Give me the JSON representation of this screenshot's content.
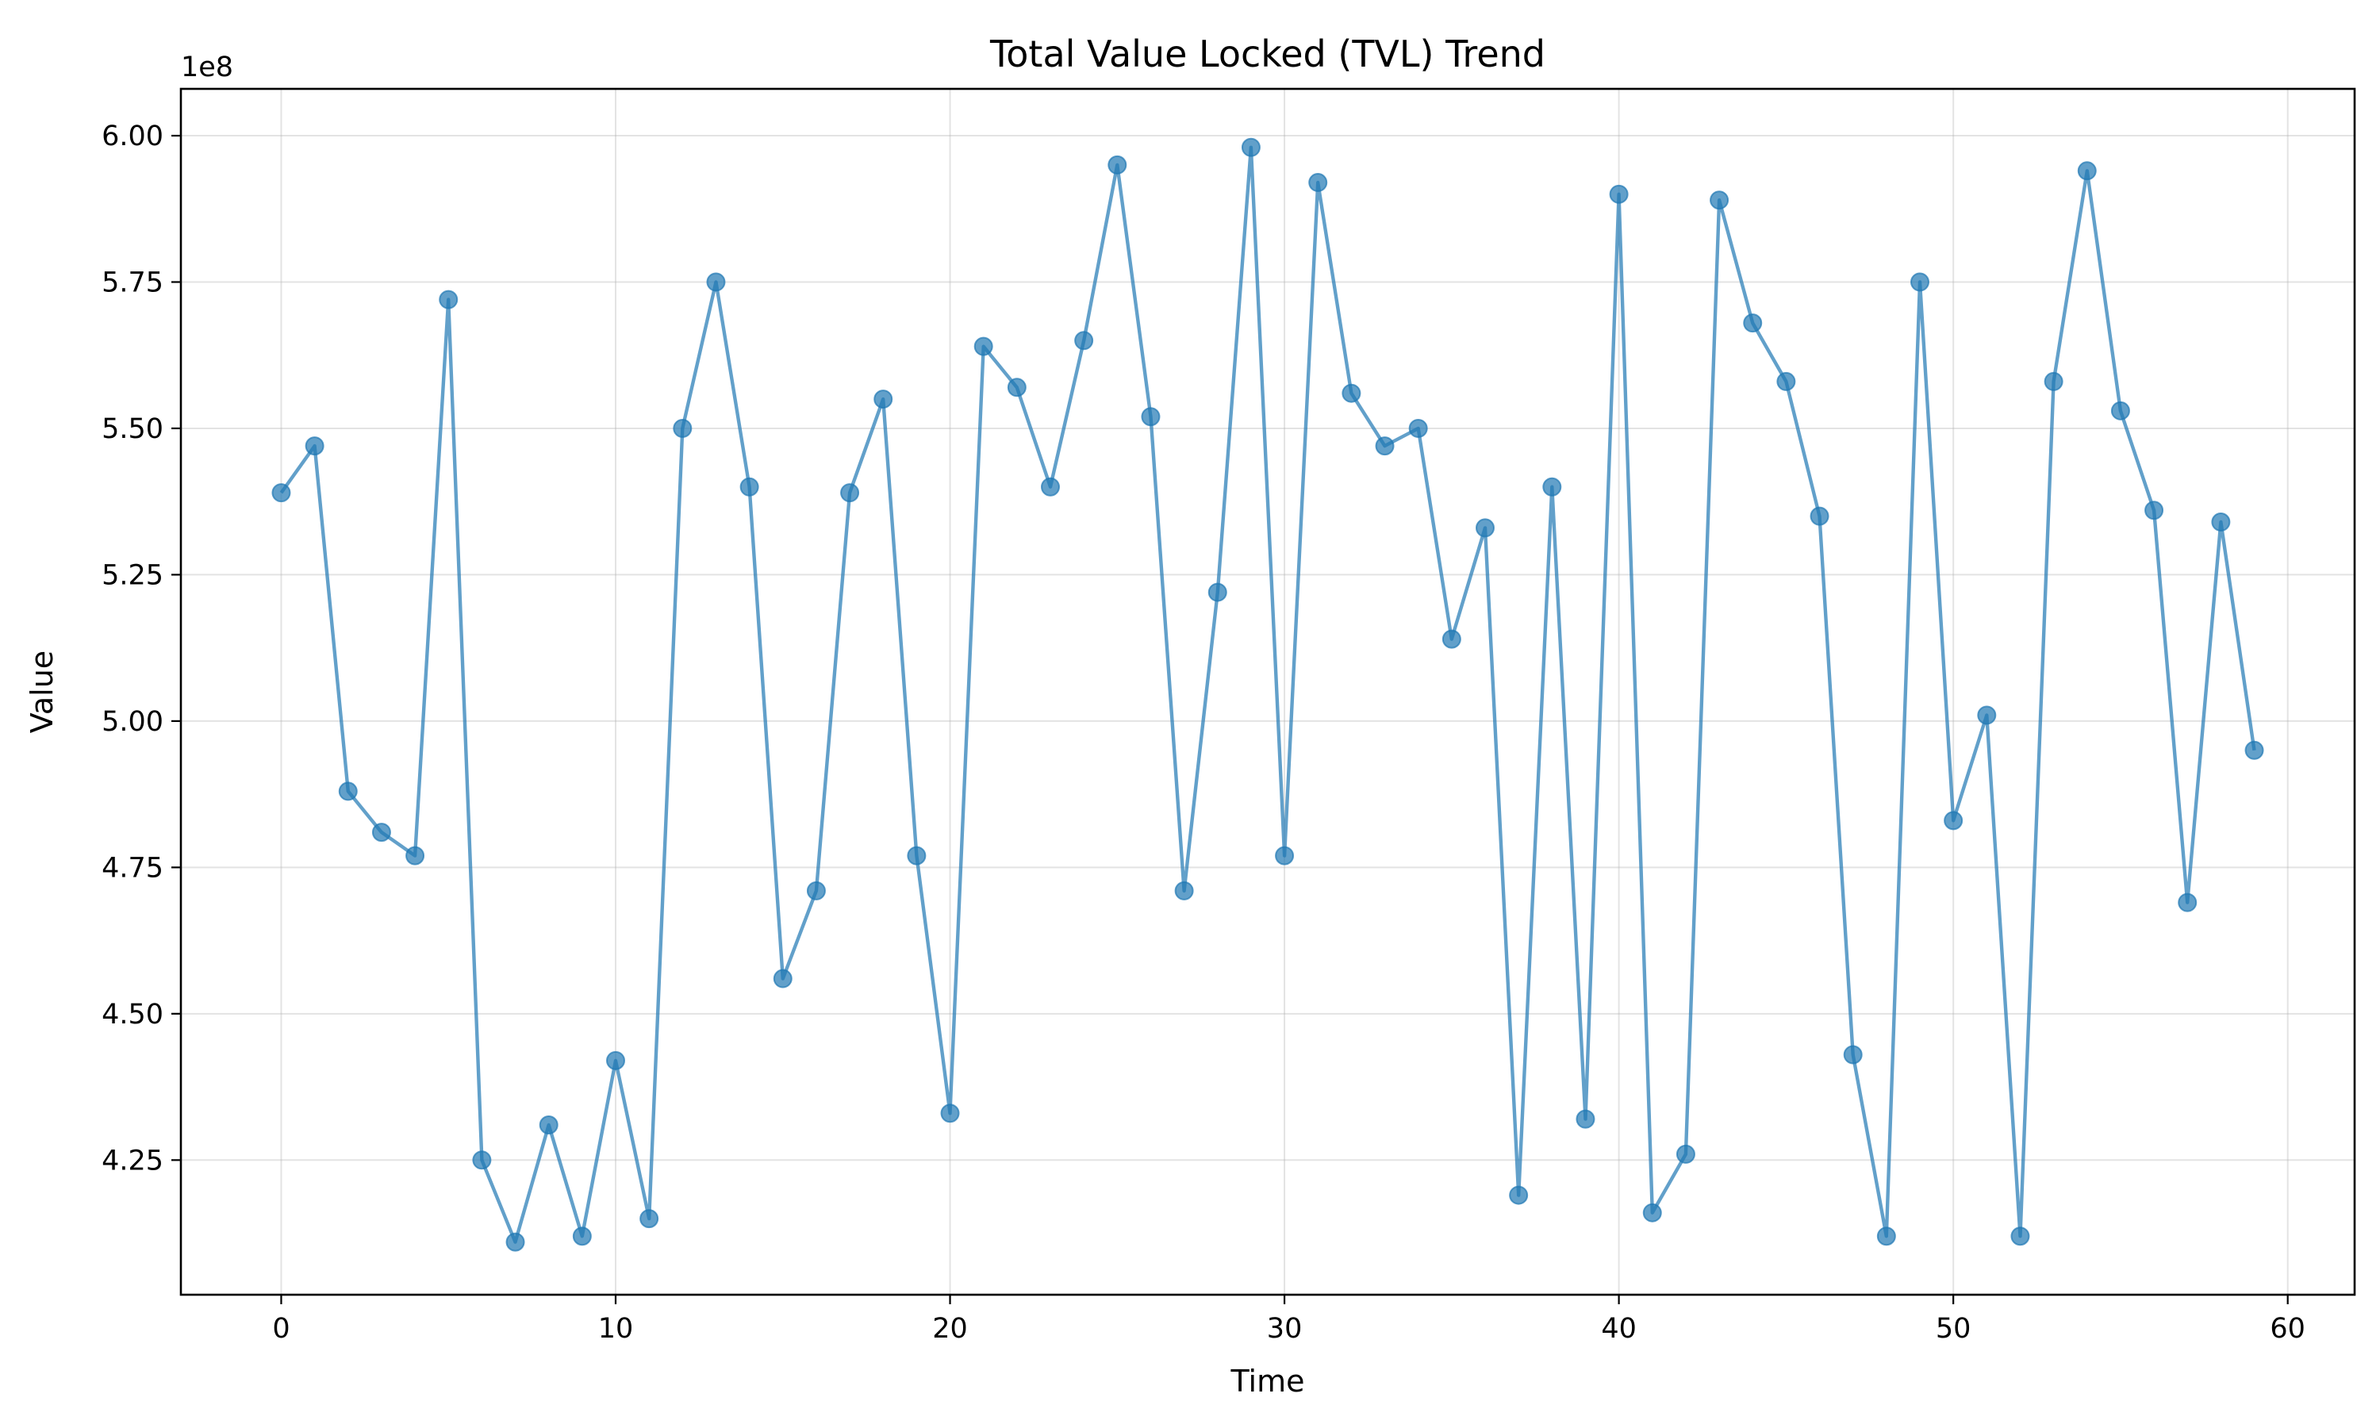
{
  "chart_data": {
    "type": "line",
    "title": "Total Value Locked (TVL) Trend",
    "xlabel": "Time",
    "ylabel": "Value",
    "y_offset_label": "1e8",
    "xlim": [
      -3,
      62
    ],
    "ylim": [
      4.02,
      6.08
    ],
    "x_ticks": [
      0,
      10,
      20,
      30,
      40,
      50,
      60
    ],
    "x_tick_labels": [
      "0",
      "10",
      "20",
      "30",
      "40",
      "50",
      "60"
    ],
    "y_ticks": [
      4.25,
      4.5,
      4.75,
      5.0,
      5.25,
      5.5,
      5.75,
      6.0
    ],
    "y_tick_labels": [
      "4.25",
      "4.50",
      "4.75",
      "5.00",
      "5.25",
      "5.50",
      "5.75",
      "6.00"
    ],
    "grid": true,
    "series_color": "#1f77b4",
    "series": [
      {
        "name": "TVL",
        "x": [
          0,
          1,
          2,
          3,
          4,
          5,
          6,
          7,
          8,
          9,
          10,
          11,
          12,
          13,
          14,
          15,
          16,
          17,
          18,
          19,
          20,
          21,
          22,
          23,
          24,
          25,
          26,
          27,
          28,
          29,
          30,
          31,
          32,
          33,
          34,
          35,
          36,
          37,
          38,
          39,
          40,
          41,
          42,
          43,
          44,
          45,
          46,
          47,
          48,
          49,
          50,
          51,
          52,
          53,
          54,
          55,
          56,
          57,
          58,
          59
        ],
        "values": [
          5.39,
          5.47,
          4.88,
          4.81,
          4.77,
          5.72,
          4.25,
          4.11,
          4.31,
          4.12,
          4.42,
          4.15,
          5.5,
          5.75,
          5.4,
          4.56,
          4.71,
          5.39,
          5.55,
          4.77,
          4.33,
          5.64,
          5.57,
          5.4,
          5.65,
          5.95,
          5.52,
          4.71,
          5.22,
          5.98,
          4.77,
          5.92,
          5.56,
          5.47,
          5.5,
          5.14,
          5.33,
          4.19,
          5.4,
          4.32,
          5.9,
          4.16,
          4.26,
          5.89,
          5.68,
          5.58,
          5.35,
          4.43,
          4.12,
          5.75,
          4.83,
          5.01,
          4.12,
          5.58,
          5.94,
          5.53,
          5.36,
          4.69,
          5.34,
          4.95
        ]
      }
    ]
  }
}
